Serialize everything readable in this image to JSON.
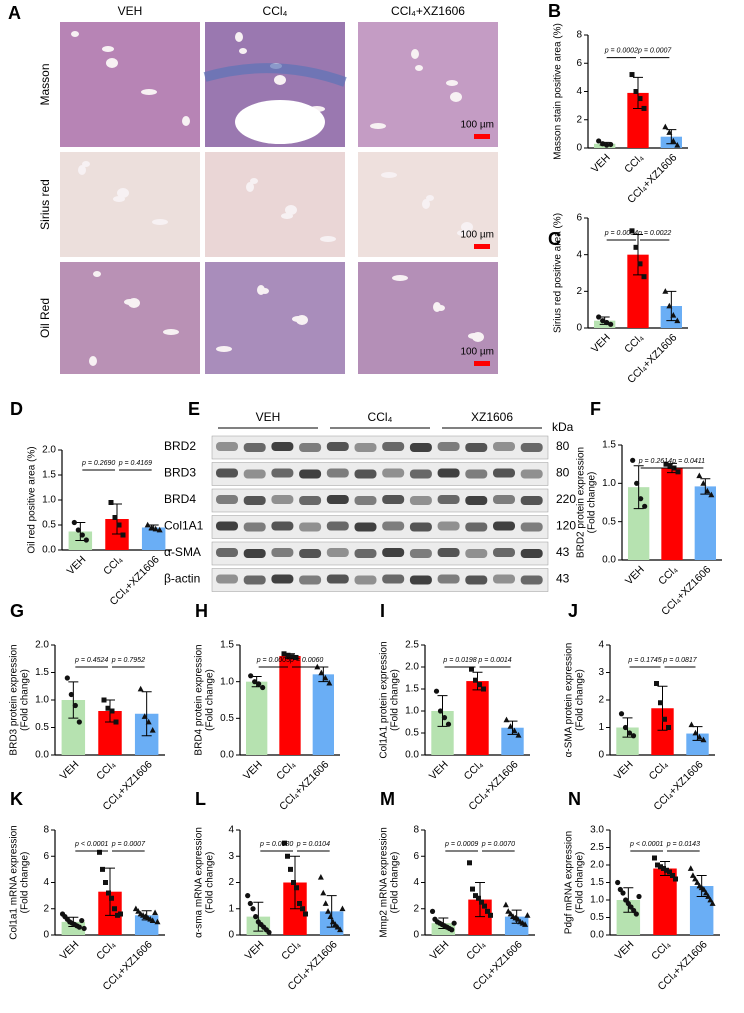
{
  "histology": {
    "label": "A",
    "columns": [
      "VEH",
      "CCl₄",
      "CCl₄+XZ1606"
    ],
    "rows": [
      "Masson",
      "Sirius red",
      "Oil Red"
    ],
    "scale_bar": "100 µm"
  },
  "blot": {
    "label": "E",
    "groups": [
      "VEH",
      "CCl₄",
      "XZ1606"
    ],
    "unit": "kDa",
    "rows": [
      {
        "name": "BRD2",
        "kda": "80"
      },
      {
        "name": "BRD3",
        "kda": "80"
      },
      {
        "name": "BRD4",
        "kda": "220"
      },
      {
        "name": "Col1A1",
        "kda": "120"
      },
      {
        "name": "α-SMA",
        "kda": "43"
      },
      {
        "name": "β-actin",
        "kda": "43"
      }
    ]
  },
  "chart_data": [
    {
      "type": "bar",
      "label": "B",
      "ylabel": [
        "Masson stain positive area (%)"
      ],
      "categories": [
        "VEH",
        "CCl₄",
        "CCl₄+XZ1606"
      ],
      "colors": [
        "#b6e2b0",
        "#ff0000",
        "#6aaef5"
      ],
      "values": [
        0.3,
        3.9,
        0.8
      ],
      "errors": [
        0.1,
        1.1,
        0.5
      ],
      "points": [
        [
          0.5,
          0.3,
          0.2,
          0.25
        ],
        [
          5.2,
          4.0,
          3.5,
          2.8
        ],
        [
          1.5,
          1.1,
          0.5,
          0.2
        ]
      ],
      "ylim": [
        0,
        8
      ],
      "yticks": [
        0,
        2,
        4,
        6,
        8
      ],
      "annotations": [
        "p = 0.0002",
        "p = 0.0007"
      ]
    },
    {
      "type": "bar",
      "label": "C",
      "ylabel": [
        "Sirius red positive area (%)"
      ],
      "categories": [
        "VEH",
        "CCl₄",
        "CCl₄+XZ1606"
      ],
      "colors": [
        "#b6e2b0",
        "#ff0000",
        "#6aaef5"
      ],
      "values": [
        0.4,
        4.0,
        1.2
      ],
      "errors": [
        0.2,
        1.1,
        0.8
      ],
      "points": [
        [
          0.6,
          0.4,
          0.3,
          0.2
        ],
        [
          5.3,
          4.4,
          3.5,
          2.8
        ],
        [
          2.0,
          1.2,
          0.7,
          0.4
        ]
      ],
      "ylim": [
        0,
        6
      ],
      "yticks": [
        0,
        2,
        4,
        6
      ],
      "annotations": [
        "p = 0.0004",
        "p = 0.0022"
      ]
    },
    {
      "type": "bar",
      "label": "D",
      "ylabel": [
        "Oil red positive area (%)"
      ],
      "categories": [
        "VEH",
        "CCl₄",
        "CCl₄+XZ1606"
      ],
      "colors": [
        "#b6e2b0",
        "#ff0000",
        "#6aaef5"
      ],
      "values": [
        0.37,
        0.62,
        0.45
      ],
      "errors": [
        0.18,
        0.3,
        0.05
      ],
      "points": [
        [
          0.55,
          0.4,
          0.3,
          0.2
        ],
        [
          0.95,
          0.65,
          0.5,
          0.3
        ],
        [
          0.5,
          0.45,
          0.42,
          0.4
        ]
      ],
      "ylim": [
        0,
        2
      ],
      "yticks": [
        {
          "value": 0,
          "label": "0.0"
        },
        0.5,
        {
          "value": 1,
          "label": "1.0"
        },
        1.5,
        {
          "value": 2,
          "label": "2.0"
        }
      ],
      "annotations": [
        "p = 0.2690",
        "p = 0.4169"
      ]
    },
    {
      "type": "bar",
      "label": "F",
      "ylabel": [
        "BRD2 protein expression",
        "(Fold change)"
      ],
      "categories": [
        "VEH",
        "CCl₄",
        "CCl₄+XZ1606"
      ],
      "colors": [
        "#b6e2b0",
        "#ff0000",
        "#6aaef5"
      ],
      "values": [
        0.95,
        1.2,
        0.96
      ],
      "errors": [
        0.28,
        0.06,
        0.1
      ],
      "points": [
        [
          1.3,
          1.0,
          0.8,
          0.7
        ],
        [
          1.25,
          1.22,
          1.2,
          1.15
        ],
        [
          1.1,
          1.0,
          0.9,
          0.85
        ]
      ],
      "ylim": [
        0,
        1.5
      ],
      "yticks": [
        {
          "value": 0,
          "label": "0.0"
        },
        0.5,
        {
          "value": 1,
          "label": "1.0"
        },
        1.5
      ],
      "annotations": [
        "p = 0.2614",
        "p = 0.0411"
      ]
    },
    {
      "type": "bar",
      "label": "G",
      "ylabel": [
        "BRD3 protein expression",
        "(Fold change)"
      ],
      "categories": [
        "VEH",
        "CCl₄",
        "CCl₄+XZ1606"
      ],
      "colors": [
        "#b6e2b0",
        "#ff0000",
        "#6aaef5"
      ],
      "values": [
        1.0,
        0.8,
        0.75
      ],
      "errors": [
        0.33,
        0.2,
        0.4
      ],
      "points": [
        [
          1.4,
          1.1,
          0.9,
          0.6
        ],
        [
          1.0,
          0.85,
          0.8,
          0.6
        ],
        [
          1.2,
          0.7,
          0.6,
          0.45
        ]
      ],
      "ylim": [
        0,
        2
      ],
      "yticks": [
        {
          "value": 0,
          "label": "0.0"
        },
        0.5,
        {
          "value": 1,
          "label": "1.0"
        },
        1.5,
        {
          "value": 2,
          "label": "2.0"
        }
      ],
      "annotations": [
        "p = 0.4524",
        "p = 0.7952"
      ]
    },
    {
      "type": "bar",
      "label": "H",
      "ylabel": [
        "BRD4 protein expression",
        "(Fold change)"
      ],
      "categories": [
        "VEH",
        "CCl₄",
        "CCl₄+XZ1606"
      ],
      "colors": [
        "#b6e2b0",
        "#ff0000",
        "#6aaef5"
      ],
      "values": [
        1.0,
        1.35,
        1.1
      ],
      "errors": [
        0.07,
        0.03,
        0.1
      ],
      "points": [
        [
          1.08,
          1.0,
          0.97,
          0.92
        ],
        [
          1.38,
          1.36,
          1.34,
          1.33
        ],
        [
          1.2,
          1.12,
          1.05,
          0.98
        ]
      ],
      "ylim": [
        0,
        1.5
      ],
      "yticks": [
        {
          "value": 0,
          "label": "0.0"
        },
        0.5,
        {
          "value": 1,
          "label": "1.0"
        },
        1.5
      ],
      "annotations": [
        "p = 0.0005",
        "p = 0.0060"
      ]
    },
    {
      "type": "bar",
      "label": "I",
      "ylabel": [
        "Col1A1 protein expression",
        "(Fold change)"
      ],
      "categories": [
        "VEH",
        "CCl₄",
        "CCl₄+XZ1606"
      ],
      "colors": [
        "#b6e2b0",
        "#ff0000",
        "#6aaef5"
      ],
      "values": [
        1.0,
        1.68,
        0.62
      ],
      "errors": [
        0.35,
        0.2,
        0.15
      ],
      "points": [
        [
          1.45,
          1.0,
          0.85,
          0.7
        ],
        [
          1.95,
          1.7,
          1.6,
          1.5
        ],
        [
          0.8,
          0.65,
          0.55,
          0.45
        ]
      ],
      "ylim": [
        0,
        2.5
      ],
      "yticks": [
        {
          "value": 0,
          "label": "0.0"
        },
        0.5,
        {
          "value": 1,
          "label": "1.0"
        },
        1.5,
        {
          "value": 2,
          "label": "2.0"
        },
        2.5
      ],
      "annotations": [
        "p = 0.0198",
        "p = 0.0014"
      ]
    },
    {
      "type": "bar",
      "label": "J",
      "ylabel": [
        "α-SMA protein expression",
        "(Fold change)"
      ],
      "categories": [
        "VEH",
        "CCl₄",
        "CCl₄+XZ1606"
      ],
      "colors": [
        "#b6e2b0",
        "#ff0000",
        "#6aaef5"
      ],
      "values": [
        1.0,
        1.7,
        0.78
      ],
      "errors": [
        0.35,
        0.8,
        0.25
      ],
      "points": [
        [
          1.5,
          1.0,
          0.8,
          0.7
        ],
        [
          2.6,
          1.9,
          1.3,
          1.0
        ],
        [
          1.1,
          0.8,
          0.65,
          0.55
        ]
      ],
      "ylim": [
        0,
        4
      ],
      "yticks": [
        0,
        1,
        2,
        3,
        4
      ],
      "annotations": [
        "p = 0.1745",
        "p = 0.0817"
      ]
    },
    {
      "type": "bar",
      "label": "K",
      "ylabel": [
        "Col1a1 mRNA expression",
        "(Fold change)"
      ],
      "categories": [
        "VEH",
        "CCl₄",
        "CCl₄+XZ1606"
      ],
      "colors": [
        "#b6e2b0",
        "#ff0000",
        "#6aaef5"
      ],
      "values": [
        1.0,
        3.3,
        1.5
      ],
      "errors": [
        0.35,
        1.8,
        0.35
      ],
      "points": [
        [
          1.6,
          1.4,
          1.2,
          1.0,
          0.9,
          0.8,
          0.7,
          0.6,
          1.1,
          0.5
        ],
        [
          6.3,
          5.0,
          4.0,
          3.2,
          2.8,
          2.0,
          1.5,
          1.6
        ],
        [
          2.0,
          1.8,
          1.6,
          1.5,
          1.4,
          1.3,
          1.2,
          1.1,
          1.7,
          1.0
        ]
      ],
      "ylim": [
        0,
        8
      ],
      "yticks": [
        0,
        2,
        4,
        6,
        8
      ],
      "annotations": [
        "p < 0.0001",
        "p = 0.0007"
      ]
    },
    {
      "type": "bar",
      "label": "L",
      "ylabel": [
        "α-sma mRNA expression",
        "(Fold change)"
      ],
      "categories": [
        "VEH",
        "CCl₄",
        "CCl₄+XZ1606"
      ],
      "colors": [
        "#b6e2b0",
        "#ff0000",
        "#6aaef5"
      ],
      "values": [
        0.7,
        2.0,
        0.9
      ],
      "errors": [
        0.55,
        1.0,
        0.6
      ],
      "points": [
        [
          1.5,
          1.2,
          1.0,
          0.7,
          0.5,
          0.4,
          0.3,
          0.2,
          0.1
        ],
        [
          3.5,
          3.0,
          2.5,
          2.0,
          1.8,
          1.2,
          1.0,
          0.8
        ],
        [
          2.2,
          1.6,
          1.2,
          0.9,
          0.7,
          0.5,
          0.4,
          0.3,
          0.2,
          1.0
        ]
      ],
      "ylim": [
        0,
        4
      ],
      "yticks": [
        0,
        1,
        2,
        3,
        4
      ],
      "annotations": [
        "p = 0.0030",
        "p = 0.0104"
      ]
    },
    {
      "type": "bar",
      "label": "M",
      "ylabel": [
        "Mmp2 mRNA expression",
        "(Fold change)"
      ],
      "categories": [
        "VEH",
        "CCl₄",
        "CCl₄+XZ1606"
      ],
      "colors": [
        "#b6e2b0",
        "#ff0000",
        "#6aaef5"
      ],
      "values": [
        0.9,
        2.7,
        1.4
      ],
      "errors": [
        0.4,
        1.3,
        0.5
      ],
      "points": [
        [
          1.8,
          1.2,
          1.0,
          0.9,
          0.8,
          0.7,
          0.6,
          0.5,
          0.4,
          0.9
        ],
        [
          5.5,
          3.5,
          3.0,
          2.8,
          2.5,
          2.2,
          1.8,
          1.5
        ],
        [
          2.3,
          1.8,
          1.6,
          1.4,
          1.3,
          1.2,
          1.0,
          0.9,
          0.8,
          1.5
        ]
      ],
      "ylim": [
        0,
        8
      ],
      "yticks": [
        0,
        2,
        4,
        6,
        8
      ],
      "annotations": [
        "p = 0.0009",
        "p = 0.0070"
      ]
    },
    {
      "type": "bar",
      "label": "N",
      "ylabel": [
        "Pdgf mRNA expression",
        "(Fold change)"
      ],
      "categories": [
        "VEH",
        "CCl₄",
        "CCl₄+XZ1606"
      ],
      "colors": [
        "#b6e2b0",
        "#ff0000",
        "#6aaef5"
      ],
      "values": [
        1.0,
        1.9,
        1.4
      ],
      "errors": [
        0.35,
        0.2,
        0.3
      ],
      "points": [
        [
          1.5,
          1.3,
          1.2,
          1.0,
          0.9,
          0.8,
          0.7,
          0.6,
          1.1
        ],
        [
          2.2,
          2.0,
          1.95,
          1.9,
          1.85,
          1.8,
          1.7,
          1.6
        ],
        [
          1.9,
          1.7,
          1.6,
          1.5,
          1.4,
          1.35,
          1.3,
          1.2,
          1.1,
          1.0,
          0.9
        ]
      ],
      "ylim": [
        0,
        3
      ],
      "yticks": [
        {
          "value": 0,
          "label": "0.0"
        },
        0.5,
        {
          "value": 1,
          "label": "1.0"
        },
        1.5,
        {
          "value": 2,
          "label": "2.0"
        },
        2.5,
        {
          "value": 3,
          "label": "3.0"
        }
      ],
      "annotations": [
        "p < 0.0001",
        "p = 0.0143"
      ]
    }
  ]
}
